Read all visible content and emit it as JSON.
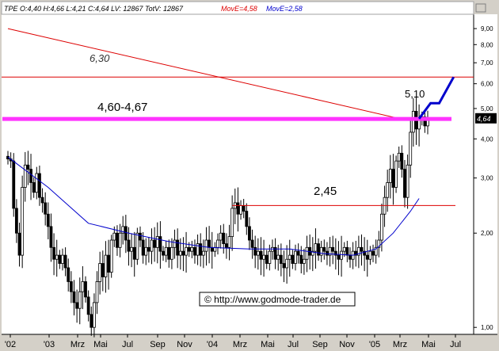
{
  "legend": [
    {
      "text": "TPE O:4,40 H:4,66 L:4,21 C:4,64 LV: 12867 TotV: 12867",
      "color": "#000000"
    },
    {
      "text": "MovE=4,58",
      "color": "#dd0000"
    },
    {
      "text": "MovE=2,58",
      "color": "#0000cc"
    }
  ],
  "watermark": "© http://www.godmode-trader.de",
  "annotations": {
    "level_630": "6,30",
    "zone": "4,60-4,67",
    "level_245": "2,45",
    "peak": "5,10"
  },
  "last_price_tag": "4,64",
  "colors": {
    "panel": "#d4d0c8",
    "plot": "#ffffff",
    "candle": "#000000",
    "ema_red": "#dd0000",
    "ema_blue": "#0000cc",
    "zone": "#ff33ff",
    "level": "#dd0000",
    "projection": "#0000cc"
  },
  "chart_data": {
    "type": "candlestick",
    "scale": "log",
    "ylim": [
      0.95,
      10
    ],
    "yticks": [
      {
        "label": "9,00",
        "value": 9
      },
      {
        "label": "8,00",
        "value": 8
      },
      {
        "label": "7,00",
        "value": 7
      },
      {
        "label": "6,00",
        "value": 6
      },
      {
        "label": "5,00",
        "value": 5
      },
      {
        "label": "4,00",
        "value": 4
      },
      {
        "label": "3,00",
        "value": 3
      },
      {
        "label": "2,00",
        "value": 2
      },
      {
        "label": "1,00",
        "value": 1
      }
    ],
    "xticks": [
      "'02",
      "'03",
      "Mrz",
      "Mai",
      "Jul",
      "Sep",
      "Nov",
      "'04",
      "Mrz",
      "Mai",
      "Jul",
      "Sep",
      "Nov",
      "'05",
      "Mrz",
      "Mai",
      "Jul"
    ],
    "weekly_closes": [
      3.45,
      3.4,
      2.4,
      2.0,
      1.7,
      2.8,
      3.3,
      3.2,
      2.9,
      2.7,
      3.1,
      2.6,
      2.5,
      2.3,
      2.1,
      1.8,
      1.65,
      1.7,
      1.6,
      1.7,
      1.55,
      1.4,
      1.3,
      1.2,
      1.15,
      1.3,
      1.4,
      1.25,
      1.1,
      1.0,
      1.2,
      1.4,
      1.6,
      1.45,
      1.7,
      1.5,
      1.9,
      2.0,
      1.8,
      2.0,
      2.1,
      1.9,
      1.75,
      1.8,
      1.65,
      2.0,
      1.9,
      1.7,
      1.8,
      1.75,
      1.9,
      1.8,
      1.95,
      1.75,
      1.7,
      1.8,
      1.65,
      1.8,
      1.9,
      1.7,
      1.75,
      1.7,
      1.8,
      1.75,
      1.8,
      1.7,
      1.85,
      1.7,
      1.75,
      1.9,
      1.8,
      1.75,
      1.8,
      1.9,
      2.0,
      1.85,
      1.8,
      1.95,
      2.4,
      2.5,
      2.3,
      2.45,
      2.35,
      2.1,
      1.9,
      1.8,
      1.7,
      1.75,
      1.65,
      1.7,
      1.6,
      1.75,
      1.8,
      1.65,
      1.7,
      1.6,
      1.55,
      1.65,
      1.7,
      1.6,
      1.75,
      1.7,
      1.6,
      1.65,
      1.8,
      1.7,
      1.75,
      1.85,
      1.7,
      1.8,
      1.75,
      1.7,
      1.8,
      1.75,
      1.7,
      1.65,
      1.75,
      1.8,
      1.7,
      1.65,
      1.75,
      1.7,
      1.8,
      1.75,
      1.7,
      1.65,
      1.75,
      1.7,
      1.8,
      1.9,
      2.3,
      2.6,
      2.9,
      3.2,
      2.8,
      3.4,
      3.6,
      3.2,
      2.6,
      3.3,
      4.2,
      4.9,
      4.3,
      4.6,
      4.7,
      4.4,
      4.64
    ],
    "series": [
      {
        "name": "MovE=4,58",
        "points": [
          [
            0,
            9.0
          ],
          [
            139,
            4.58
          ]
        ]
      },
      {
        "name": "MovE=2,58",
        "points": [
          [
            0,
            3.5
          ],
          [
            14,
            2.8
          ],
          [
            28,
            2.15
          ],
          [
            42,
            2.0
          ],
          [
            56,
            1.88
          ],
          [
            70,
            1.8
          ],
          [
            84,
            1.78
          ],
          [
            98,
            1.78
          ],
          [
            110,
            1.72
          ],
          [
            120,
            1.7
          ],
          [
            128,
            1.78
          ],
          [
            134,
            2.0
          ],
          [
            140,
            2.35
          ],
          [
            143,
            2.58
          ]
        ]
      }
    ],
    "levels": [
      {
        "label": "6,30",
        "value": 6.3
      },
      {
        "label": "2,45",
        "value": 2.45,
        "from_index": 78
      },
      {
        "label": "4,60-4,67",
        "value": 4.63,
        "zone": [
          4.6,
          4.67
        ]
      }
    ],
    "projection": [
      [
        143,
        4.64
      ],
      [
        147,
        5.2
      ],
      [
        150,
        5.2
      ],
      [
        155,
        6.3
      ]
    ]
  }
}
